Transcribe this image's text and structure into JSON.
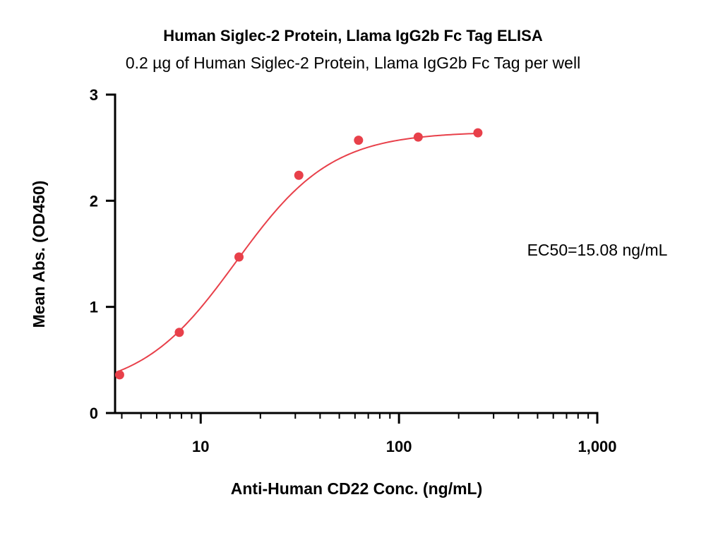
{
  "chart_data": {
    "type": "scatter",
    "title": "Human Siglec-2 Protein, Llama IgG2b Fc Tag ELISA",
    "subtitle": "0.2 µg of Human Siglec-2 Protein, Llama IgG2b Fc Tag per well",
    "xlabel": "Anti-Human CD22 Conc. (ng/mL)",
    "ylabel": "Mean Abs. (OD450)",
    "x_scale": "log",
    "xlim": [
      3.7,
      1000
    ],
    "ylim": [
      0,
      3
    ],
    "x_ticks": [
      {
        "value": 10,
        "label": "10"
      },
      {
        "value": 100,
        "label": "100"
      },
      {
        "value": 1000,
        "label": "1,000"
      }
    ],
    "y_ticks": [
      {
        "value": 0,
        "label": "0"
      },
      {
        "value": 1,
        "label": "1"
      },
      {
        "value": 2,
        "label": "2"
      },
      {
        "value": 3,
        "label": "3"
      }
    ],
    "series": [
      {
        "color": "#e8404a",
        "x": [
          3.9,
          7.8,
          15.6,
          31.25,
          62.5,
          125,
          250
        ],
        "y": [
          0.36,
          0.76,
          1.47,
          2.24,
          2.57,
          2.6,
          2.64
        ],
        "fit": {
          "model": "4PL",
          "bottom": 0.2,
          "top": 2.65,
          "ec50": 15.08,
          "hill": 1.8
        }
      }
    ],
    "annotation": "EC50=15.08 ng/mL",
    "grid": false,
    "legend": "none"
  }
}
